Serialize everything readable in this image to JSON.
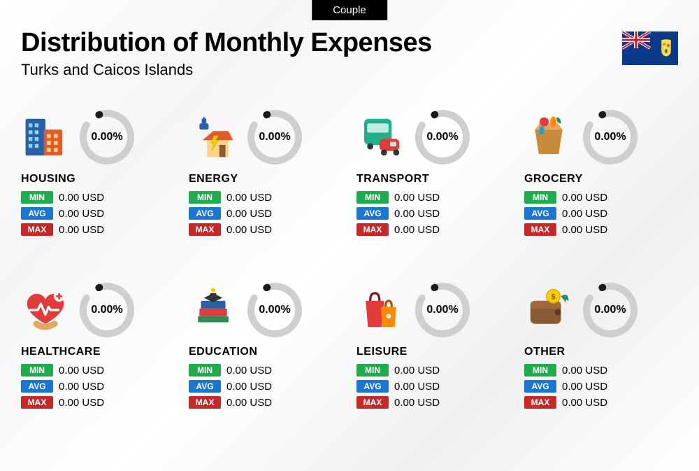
{
  "tab_label": "Couple",
  "title": "Distribution of Monthly Expenses",
  "subtitle": "Turks and Caicos Islands",
  "colors": {
    "min_bg": "#1fab4e",
    "avg_bg": "#1976d2",
    "max_bg": "#c62828",
    "donut_track": "#cfcfcf",
    "donut_indicator": "#1a1a1a",
    "tab_bg": "#000000"
  },
  "labels": {
    "min": "MIN",
    "avg": "AVG",
    "max": "MAX"
  },
  "donut": {
    "track_width": 10,
    "gap_deg": 40
  },
  "flag": {
    "bg": "#0a3a8a",
    "union_red": "#cf142b",
    "union_white": "#ffffff",
    "shield_bg": "#fddc4b"
  },
  "categories": [
    {
      "name": "HOUSING",
      "icon": "housing",
      "percent": "0.00%",
      "min": "0.00 USD",
      "avg": "0.00 USD",
      "max": "0.00 USD"
    },
    {
      "name": "ENERGY",
      "icon": "energy",
      "percent": "0.00%",
      "min": "0.00 USD",
      "avg": "0.00 USD",
      "max": "0.00 USD"
    },
    {
      "name": "TRANSPORT",
      "icon": "transport",
      "percent": "0.00%",
      "min": "0.00 USD",
      "avg": "0.00 USD",
      "max": "0.00 USD"
    },
    {
      "name": "GROCERY",
      "icon": "grocery",
      "percent": "0.00%",
      "min": "0.00 USD",
      "avg": "0.00 USD",
      "max": "0.00 USD"
    },
    {
      "name": "HEALTHCARE",
      "icon": "healthcare",
      "percent": "0.00%",
      "min": "0.00 USD",
      "avg": "0.00 USD",
      "max": "0.00 USD"
    },
    {
      "name": "EDUCATION",
      "icon": "education",
      "percent": "0.00%",
      "min": "0.00 USD",
      "avg": "0.00 USD",
      "max": "0.00 USD"
    },
    {
      "name": "LEISURE",
      "icon": "leisure",
      "percent": "0.00%",
      "min": "0.00 USD",
      "avg": "0.00 USD",
      "max": "0.00 USD"
    },
    {
      "name": "OTHER",
      "icon": "other",
      "percent": "0.00%",
      "min": "0.00 USD",
      "avg": "0.00 USD",
      "max": "0.00 USD"
    }
  ]
}
